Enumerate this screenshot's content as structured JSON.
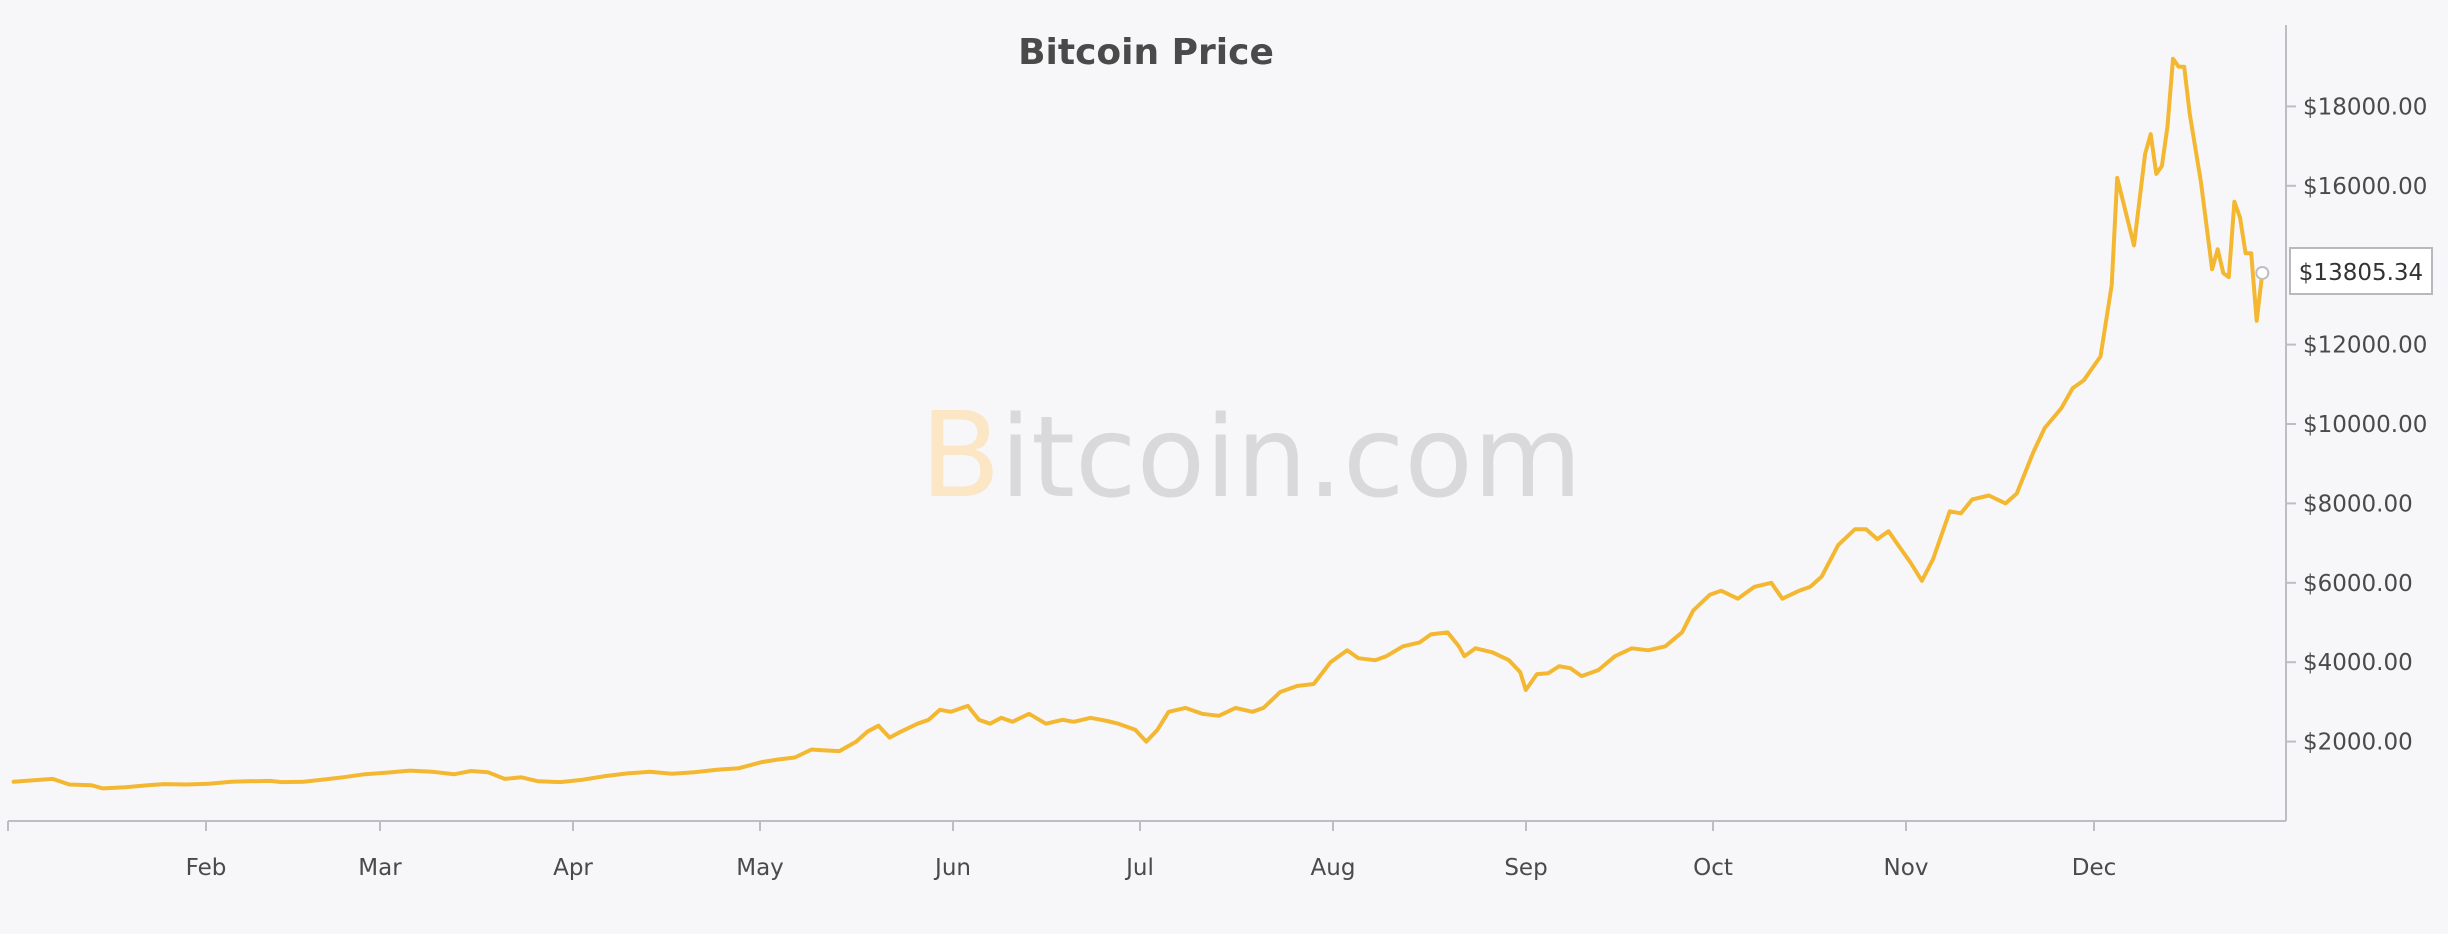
{
  "colors": {
    "line": "#f4b731",
    "axis": "#bdbdc4",
    "text": "#4a4a4a",
    "background": "#f7f7f9",
    "watermark_text": "#d9d9db",
    "watermark_logo": "#fbe6c5"
  },
  "watermark": {
    "logo": "B",
    "text": "itcoin.com"
  },
  "tooltip": {
    "label": "$13805.34"
  },
  "chart_data": {
    "type": "line",
    "title": "Bitcoin Price",
    "xlabel": "",
    "ylabel": "",
    "x_tick_labels": [
      "Feb",
      "Mar",
      "Apr",
      "May",
      "Jun",
      "Jul",
      "Aug",
      "Sep",
      "Oct",
      "Nov",
      "Dec"
    ],
    "y_tick_labels": [
      "$2000.00",
      "$4000.00",
      "$6000.00",
      "$8000.00",
      "$10000.00",
      "$12000.00",
      "$16000.00",
      "$18000.00"
    ],
    "y_ticks": [
      2000,
      4000,
      6000,
      8000,
      10000,
      12000,
      16000,
      18000
    ],
    "ylim": [
      0,
      20000
    ],
    "y_axis_position": "right",
    "grid": false,
    "legend": "none",
    "series": [
      {
        "values": [
          [
            1,
            990
          ],
          [
            4,
            1020
          ],
          [
            8,
            1060
          ],
          [
            11,
            920
          ],
          [
            15,
            900
          ],
          [
            17,
            820
          ],
          [
            21,
            850
          ],
          [
            25,
            900
          ],
          [
            28,
            930
          ],
          [
            32,
            920
          ],
          [
            36,
            940
          ],
          [
            40,
            990
          ],
          [
            43,
            1000
          ],
          [
            47,
            1010
          ],
          [
            49,
            980
          ],
          [
            53,
            990
          ],
          [
            57,
            1050
          ],
          [
            60,
            1100
          ],
          [
            64,
            1180
          ],
          [
            68,
            1220
          ],
          [
            72,
            1270
          ],
          [
            76,
            1240
          ],
          [
            80,
            1180
          ],
          [
            83,
            1260
          ],
          [
            86,
            1230
          ],
          [
            89,
            1060
          ],
          [
            92,
            1100
          ],
          [
            95,
            1000
          ],
          [
            99,
            980
          ],
          [
            103,
            1040
          ],
          [
            107,
            1130
          ],
          [
            111,
            1200
          ],
          [
            115,
            1240
          ],
          [
            119,
            1190
          ],
          [
            123,
            1230
          ],
          [
            127,
            1290
          ],
          [
            131,
            1330
          ],
          [
            135,
            1480
          ],
          [
            138,
            1550
          ],
          [
            141,
            1600
          ],
          [
            144,
            1800
          ],
          [
            146,
            1780
          ],
          [
            149,
            1760
          ],
          [
            152,
            2000
          ],
          [
            154,
            2250
          ],
          [
            156,
            2400
          ],
          [
            158,
            2100
          ],
          [
            160,
            2250
          ],
          [
            163,
            2450
          ],
          [
            165,
            2550
          ],
          [
            167,
            2800
          ],
          [
            169,
            2750
          ],
          [
            172,
            2900
          ],
          [
            174,
            2550
          ],
          [
            176,
            2450
          ],
          [
            178,
            2600
          ],
          [
            180,
            2500
          ],
          [
            183,
            2700
          ],
          [
            186,
            2450
          ],
          [
            189,
            2550
          ],
          [
            191,
            2500
          ],
          [
            194,
            2600
          ],
          [
            197,
            2520
          ],
          [
            199,
            2450
          ],
          [
            202,
            2300
          ],
          [
            204,
            2000
          ],
          [
            206,
            2300
          ],
          [
            208,
            2750
          ],
          [
            211,
            2850
          ],
          [
            214,
            2700
          ],
          [
            217,
            2650
          ],
          [
            220,
            2850
          ],
          [
            223,
            2750
          ],
          [
            225,
            2850
          ],
          [
            228,
            3250
          ],
          [
            231,
            3400
          ],
          [
            234,
            3450
          ],
          [
            237,
            4000
          ],
          [
            240,
            4300
          ],
          [
            242,
            4100
          ],
          [
            245,
            4050
          ],
          [
            247,
            4150
          ],
          [
            250,
            4400
          ],
          [
            253,
            4500
          ],
          [
            255,
            4700
          ],
          [
            258,
            4750
          ],
          [
            260,
            4400
          ],
          [
            261,
            4150
          ],
          [
            263,
            4350
          ],
          [
            266,
            4250
          ],
          [
            269,
            4050
          ],
          [
            271,
            3750
          ],
          [
            272,
            3300
          ],
          [
            274,
            3700
          ],
          [
            276,
            3720
          ],
          [
            278,
            3900
          ],
          [
            280,
            3850
          ],
          [
            282,
            3650
          ],
          [
            285,
            3800
          ],
          [
            288,
            4150
          ],
          [
            291,
            4350
          ],
          [
            294,
            4300
          ],
          [
            297,
            4400
          ],
          [
            300,
            4750
          ],
          [
            302,
            5300
          ],
          [
            305,
            5700
          ],
          [
            307,
            5800
          ],
          [
            310,
            5600
          ],
          [
            313,
            5900
          ],
          [
            316,
            6000
          ],
          [
            318,
            5600
          ],
          [
            321,
            5800
          ],
          [
            323,
            5900
          ],
          [
            325,
            6150
          ],
          [
            328,
            6950
          ],
          [
            331,
            7350
          ],
          [
            333,
            7350
          ],
          [
            335,
            7100
          ],
          [
            337,
            7300
          ],
          [
            339,
            6900
          ],
          [
            341,
            6500
          ],
          [
            343,
            6050
          ],
          [
            345,
            6600
          ],
          [
            348,
            7800
          ],
          [
            350,
            7750
          ],
          [
            352,
            8100
          ],
          [
            355,
            8200
          ],
          [
            358,
            8000
          ],
          [
            360,
            8250
          ],
          [
            363,
            9300
          ],
          [
            365,
            9900
          ],
          [
            368,
            10400
          ],
          [
            370,
            10900
          ],
          [
            372,
            11100
          ],
          [
            373,
            11300
          ],
          [
            375,
            11700
          ],
          [
            377,
            13500
          ],
          [
            378,
            16200
          ],
          [
            381,
            14500
          ],
          [
            383,
            16800
          ],
          [
            384,
            17300
          ],
          [
            385,
            16300
          ],
          [
            386,
            16500
          ],
          [
            387,
            17500
          ],
          [
            388,
            19200
          ],
          [
            389,
            19000
          ],
          [
            390,
            19000
          ],
          [
            391,
            17800
          ],
          [
            393,
            16100
          ],
          [
            395,
            13900
          ],
          [
            396,
            14400
          ],
          [
            397,
            13800
          ],
          [
            398,
            13700
          ],
          [
            399,
            15600
          ],
          [
            400,
            15200
          ],
          [
            401,
            14300
          ],
          [
            402,
            14300
          ],
          [
            403,
            12600
          ],
          [
            404,
            13805
          ]
        ]
      }
    ]
  }
}
